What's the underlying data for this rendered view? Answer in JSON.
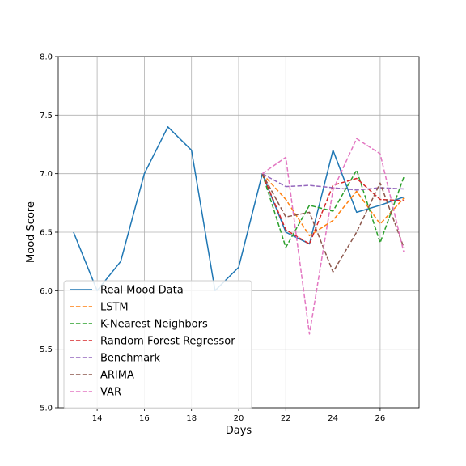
{
  "chart_data": {
    "type": "line",
    "title": "",
    "xlabel": "Days",
    "ylabel": "Mood Score",
    "xlim": [
      12.35,
      27.65
    ],
    "ylim": [
      5.0,
      8.0
    ],
    "xticks": [
      14,
      16,
      18,
      20,
      22,
      24,
      26
    ],
    "yticks": [
      5.0,
      5.5,
      6.0,
      6.5,
      7.0,
      7.5,
      8.0
    ],
    "xtick_labels": [
      "14",
      "16",
      "18",
      "20",
      "22",
      "24",
      "26"
    ],
    "ytick_labels": [
      "5.0",
      "5.5",
      "6.0",
      "6.5",
      "7.0",
      "7.5",
      "8.0"
    ],
    "grid": true,
    "legend_position": "lower-left",
    "series": [
      {
        "name": "Real Mood Data",
        "style": "solid",
        "color": "#1f77b4",
        "x": [
          13,
          14,
          15,
          16,
          17,
          18,
          19,
          20,
          21,
          22,
          23,
          24,
          25,
          26,
          27
        ],
        "y": [
          6.5,
          6.0,
          6.25,
          7.0,
          7.4,
          7.2,
          6.0,
          6.2,
          7.0,
          6.5,
          6.4,
          7.2,
          6.67,
          6.73,
          6.8
        ]
      },
      {
        "name": "LSTM",
        "style": "dashed",
        "color": "#ff7f0e",
        "x": [
          21,
          22,
          23,
          24,
          25,
          26,
          27
        ],
        "y": [
          7.0,
          6.78,
          6.47,
          6.6,
          6.85,
          6.57,
          6.79
        ]
      },
      {
        "name": "K-Nearest Neighbors",
        "style": "dashed",
        "color": "#2ca02c",
        "x": [
          21,
          22,
          23,
          24,
          25,
          26,
          27
        ],
        "y": [
          7.0,
          6.37,
          6.73,
          6.68,
          7.03,
          6.41,
          6.97
        ]
      },
      {
        "name": "Random Forest Regressor",
        "style": "dashed",
        "color": "#d62728",
        "x": [
          21,
          22,
          23,
          24,
          25,
          26,
          27
        ],
        "y": [
          7.0,
          6.52,
          6.4,
          6.9,
          6.96,
          6.78,
          6.77
        ]
      },
      {
        "name": "Benchmark",
        "style": "dashed",
        "color": "#9467bd",
        "x": [
          21,
          22,
          23,
          24,
          25,
          26,
          27
        ],
        "y": [
          7.0,
          6.89,
          6.9,
          6.88,
          6.86,
          6.88,
          6.87
        ]
      },
      {
        "name": "ARIMA",
        "style": "dashed",
        "color": "#8c564b",
        "x": [
          21,
          22,
          23,
          24,
          25,
          26,
          27
        ],
        "y": [
          7.0,
          6.63,
          6.67,
          6.16,
          6.5,
          6.92,
          6.37
        ]
      },
      {
        "name": "VAR",
        "style": "dashed",
        "color": "#e377c2",
        "x": [
          21,
          22,
          23,
          24,
          25,
          26,
          27
        ],
        "y": [
          7.0,
          7.14,
          5.63,
          6.86,
          7.3,
          7.17,
          6.33
        ]
      }
    ]
  }
}
